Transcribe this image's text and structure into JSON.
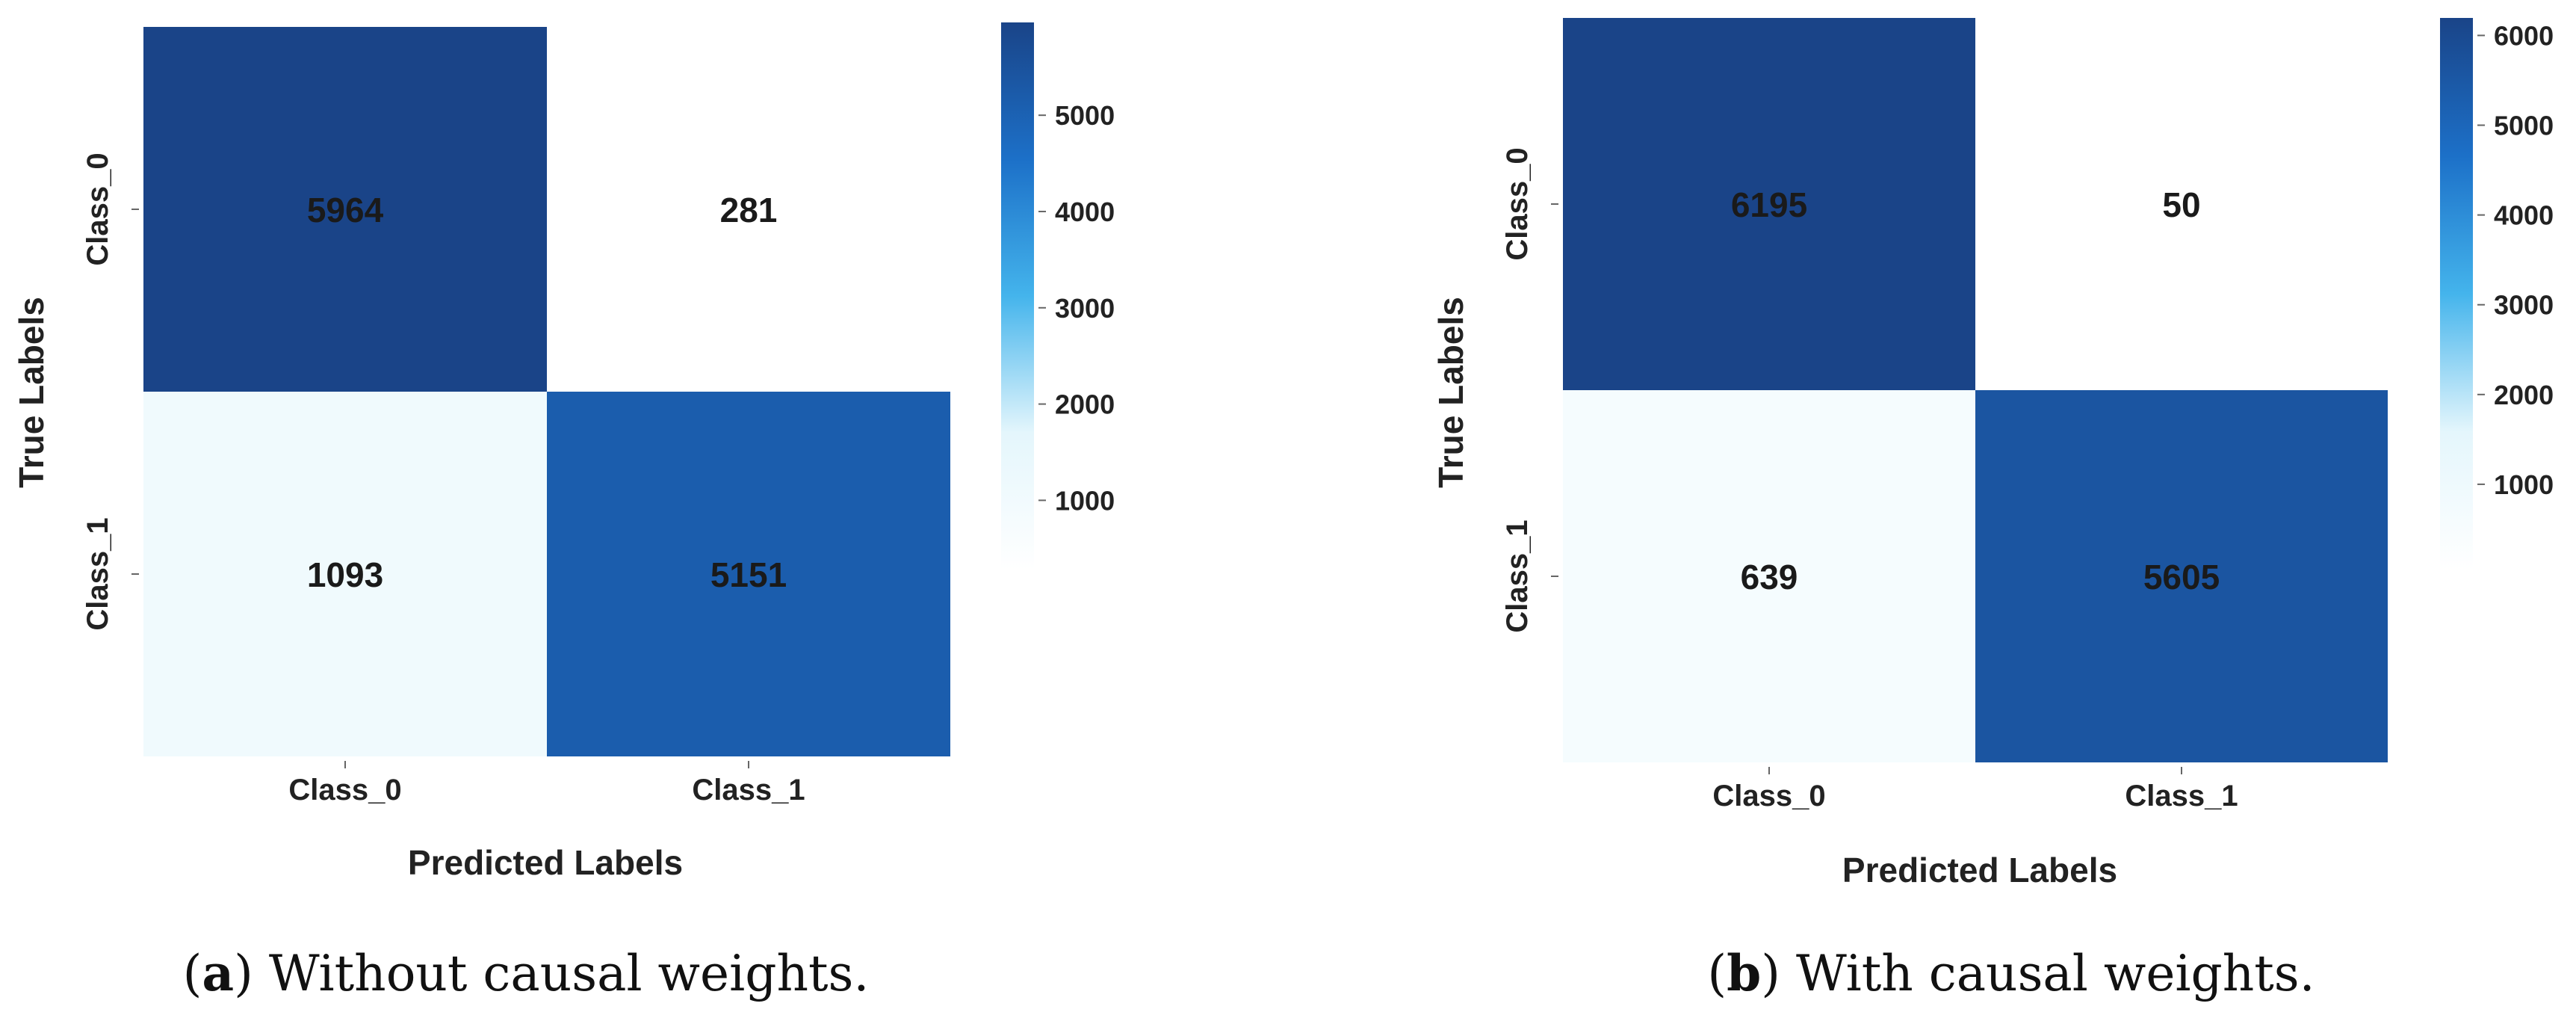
{
  "chart_data": [
    {
      "type": "heatmap",
      "row_categories": [
        "Class_0",
        "Class_1"
      ],
      "col_categories": [
        "Class_0",
        "Class_1"
      ],
      "values": [
        [
          5964,
          281
        ],
        [
          1093,
          5151
        ]
      ],
      "xlabel": "Predicted Labels",
      "ylabel": "True Labels",
      "colorbar": {
        "ticks": [
          1000,
          2000,
          3000,
          4000,
          5000
        ],
        "range": [
          281,
          5964
        ]
      },
      "caption": {
        "label": "a",
        "text": "Without causal weights."
      },
      "colormap": [
        "#ffffff",
        "#e4f6fc",
        "#44b4ec",
        "#1c70c8",
        "#1a4488"
      ]
    },
    {
      "type": "heatmap",
      "row_categories": [
        "Class_0",
        "Class_1"
      ],
      "col_categories": [
        "Class_0",
        "Class_1"
      ],
      "values": [
        [
          6195,
          50
        ],
        [
          639,
          5605
        ]
      ],
      "xlabel": "Predicted Labels",
      "ylabel": "True Labels",
      "colorbar": {
        "ticks": [
          1000,
          2000,
          3000,
          4000,
          5000,
          6000
        ],
        "range": [
          50,
          6195
        ]
      },
      "caption": {
        "label": "b",
        "text": "With causal weights."
      },
      "colormap": [
        "#ffffff",
        "#e4f6fc",
        "#44b4ec",
        "#1c70c8",
        "#1a4488"
      ]
    }
  ]
}
